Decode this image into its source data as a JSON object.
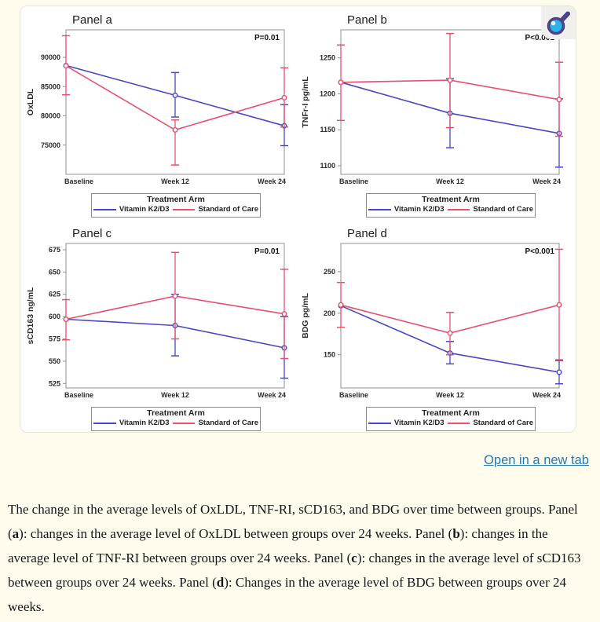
{
  "page": {
    "background_color": "#fffcee"
  },
  "figure": {
    "legend_title": "Treatment Arm",
    "zoom_button": "magnifier"
  },
  "link": {
    "label": "Open in a new tab",
    "color": "#2679ae"
  },
  "caption": {
    "segments": [
      {
        "text": "The change in the average levels of OxLDL, TNF-RI, sCD163, and BDG over time between groups. Panel (",
        "bold": false
      },
      {
        "text": "a",
        "bold": true
      },
      {
        "text": "): changes in the average level of OxLDL between groups over 24 weeks. Panel (",
        "bold": false
      },
      {
        "text": "b",
        "bold": true
      },
      {
        "text": "): changes in the average level of TNF-RI between groups over 24 weeks. Panel (",
        "bold": false
      },
      {
        "text": "c",
        "bold": true
      },
      {
        "text": "): changes in the average level of sCD163 between groups over 24 weeks. Panel (",
        "bold": false
      },
      {
        "text": "d",
        "bold": true
      },
      {
        "text": "): Changes in the average level of BDG between groups over 24 weeks.",
        "bold": false
      }
    ]
  },
  "chart_data": [
    {
      "type": "line",
      "title": "Panel a",
      "ylabel": "OxLDL",
      "pvalue": "P=0.01",
      "categories": [
        "Baseline",
        "Week 12",
        "Week 24"
      ],
      "yticks": [
        75000,
        80000,
        85000,
        90000
      ],
      "ylim": [
        70000,
        94700
      ],
      "grid": false,
      "legend_position": "bottom",
      "series": [
        {
          "name": "Vitamin K2/D3",
          "color": "#4747c7",
          "values": [
            88600,
            83500,
            78300
          ],
          "err": [
            null,
            [
              79800,
              87400
            ],
            [
              74900,
              81900
            ]
          ]
        },
        {
          "name": "Standard of Care",
          "color": "#e8506e",
          "values": [
            88550,
            77600,
            83100
          ],
          "err": [
            [
              83600,
              93700
            ],
            [
              71600,
              79300
            ],
            [
              78100,
              88200
            ]
          ]
        }
      ]
    },
    {
      "type": "line",
      "title": "Panel b",
      "ylabel": "TNFr-I pg/mL",
      "pvalue": "P<0.001",
      "categories": [
        "Baseline",
        "Week 12",
        "Week 24"
      ],
      "yticks": [
        1100,
        1150,
        1200,
        1250
      ],
      "ylim": [
        1088,
        1289
      ],
      "grid": false,
      "legend_position": "bottom",
      "series": [
        {
          "name": "Vitamin K2/D3",
          "color": "#4747c7",
          "values": [
            1216,
            1173,
            1145
          ],
          "err": [
            null,
            [
              1125,
              1221
            ],
            [
              1098,
              1193
            ]
          ]
        },
        {
          "name": "Standard of Care",
          "color": "#e8506e",
          "values": [
            1216,
            1219,
            1192
          ],
          "err": [
            [
              1163,
              1268
            ],
            [
              1153,
              1284
            ],
            [
              1141,
              1244
            ]
          ]
        }
      ]
    },
    {
      "type": "line",
      "title": "Panel c",
      "ylabel": "sCD163 ng/mL",
      "pvalue": "P=0.01",
      "categories": [
        "Baseline",
        "Week 12",
        "Week 24"
      ],
      "yticks": [
        525,
        550,
        575,
        600,
        625,
        650,
        675
      ],
      "ylim": [
        520,
        682
      ],
      "grid": false,
      "legend_position": "bottom",
      "series": [
        {
          "name": "Vitamin K2/D3",
          "color": "#4747c7",
          "values": [
            597,
            590,
            565
          ],
          "err": [
            null,
            [
              556,
              625
            ],
            [
              531,
              600
            ]
          ]
        },
        {
          "name": "Standard of Care",
          "color": "#e8506e",
          "values": [
            597,
            623,
            603
          ],
          "err": [
            [
              574,
              619
            ],
            [
              575,
              672
            ],
            [
              553,
              653
            ]
          ]
        }
      ]
    },
    {
      "type": "line",
      "title": "Panel d",
      "ylabel": "BDG pg/mL",
      "pvalue": "P<0.001",
      "categories": [
        "Baseline",
        "Week 12",
        "Week 24"
      ],
      "yticks": [
        150,
        200,
        250
      ],
      "ylim": [
        110,
        284
      ],
      "grid": false,
      "legend_position": "bottom",
      "series": [
        {
          "name": "Vitamin K2/D3",
          "color": "#4747c7",
          "values": [
            209,
            152,
            129
          ],
          "err": [
            null,
            [
              139,
              166
            ],
            [
              115,
              143
            ]
          ]
        },
        {
          "name": "Standard of Care",
          "color": "#e8506e",
          "values": [
            210,
            176,
            210
          ],
          "err": [
            [
              183,
              237
            ],
            [
              150,
              201
            ],
            [
              144,
              277
            ]
          ]
        }
      ]
    }
  ]
}
